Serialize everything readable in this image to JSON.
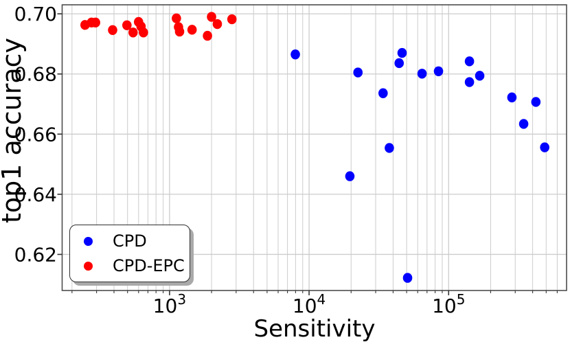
{
  "figure_title": "",
  "legend": {
    "entries": [
      {
        "label": "CPD",
        "color": "#0000ff"
      },
      {
        "label": "CPD-EPC",
        "color": "#ff0000"
      }
    ]
  },
  "colors": {
    "cpd": "#0000ff",
    "cpd_epc": "#ff0000",
    "grid": "#cccccc",
    "spine": "#4d4d4d",
    "text": "#000000"
  },
  "chart_data": {
    "type": "scatter",
    "title": "",
    "xlabel": "Sensitivity",
    "ylabel": "top1 accuracy",
    "x_scale": "log",
    "xlim": [
      170,
      700000
    ],
    "ylim": [
      0.608,
      0.703
    ],
    "x_ticks": [
      1000,
      10000,
      100000
    ],
    "x_tick_labels": [
      "10^3",
      "10^4",
      "10^5"
    ],
    "y_ticks": [
      0.62,
      0.64,
      0.66,
      0.68,
      0.7
    ],
    "y_tick_labels": [
      "0.62",
      "0.64",
      "0.66",
      "0.68",
      "0.70"
    ],
    "grid": true,
    "legend_position": "lower left",
    "series": [
      {
        "name": "CPD",
        "color": "#0000ff",
        "points": [
          [
            7970,
            0.6865
          ],
          [
            19600,
            0.646
          ],
          [
            22400,
            0.6805
          ],
          [
            33900,
            0.6736
          ],
          [
            37600,
            0.6554
          ],
          [
            44200,
            0.6836
          ],
          [
            46400,
            0.687
          ],
          [
            50800,
            0.6122
          ],
          [
            64500,
            0.6801
          ],
          [
            84600,
            0.6809
          ],
          [
            141000,
            0.6842
          ],
          [
            141000,
            0.6773
          ],
          [
            167000,
            0.6794
          ],
          [
            284000,
            0.6722
          ],
          [
            345000,
            0.6634
          ],
          [
            422000,
            0.6707
          ],
          [
            488000,
            0.6556
          ]
        ]
      },
      {
        "name": "CPD-EPC",
        "color": "#ff0000",
        "points": [
          [
            248,
            0.6963
          ],
          [
            276,
            0.6971
          ],
          [
            295,
            0.6971
          ],
          [
            391,
            0.6946
          ],
          [
            495,
            0.6962
          ],
          [
            548,
            0.6938
          ],
          [
            600,
            0.6973
          ],
          [
            625,
            0.6958
          ],
          [
            650,
            0.6938
          ],
          [
            1120,
            0.6985
          ],
          [
            1160,
            0.6956
          ],
          [
            1180,
            0.6941
          ],
          [
            1450,
            0.6947
          ],
          [
            1870,
            0.6927
          ],
          [
            2000,
            0.699
          ],
          [
            2200,
            0.6966
          ],
          [
            2800,
            0.6982
          ]
        ]
      }
    ]
  }
}
